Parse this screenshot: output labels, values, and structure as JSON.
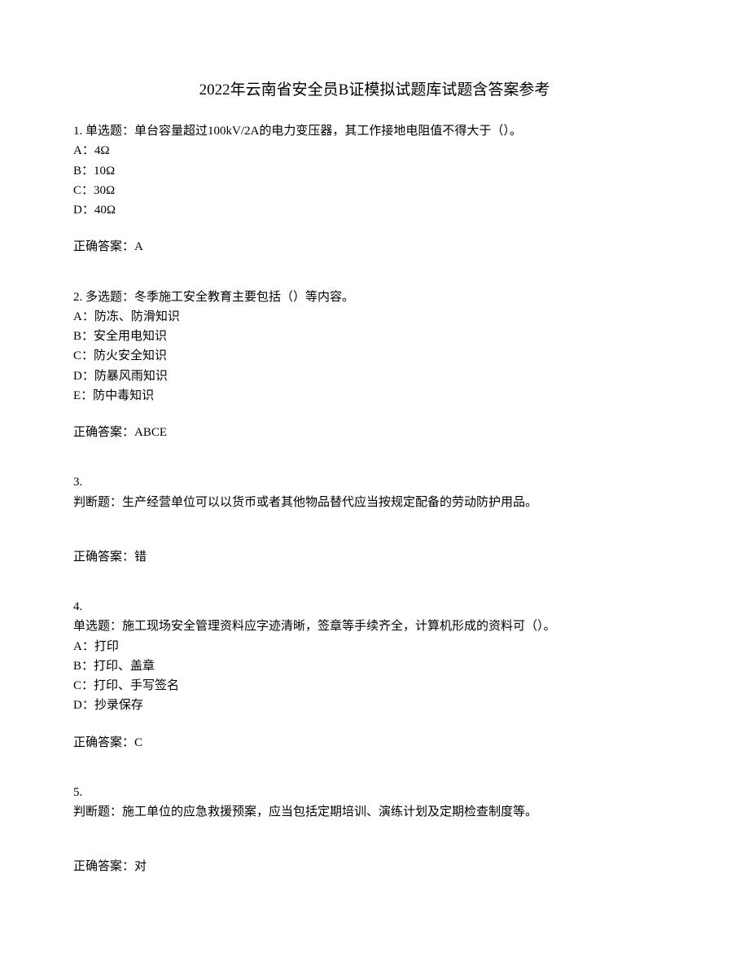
{
  "title": "2022年云南省安全员B证模拟试题库试题含答案参考",
  "questions": [
    {
      "number": "1.",
      "type_prefix": "单选题：",
      "stem": "单台容量超过100kV/2A的电力变压器，其工作接地电阻值不得大于（）。",
      "options": [
        {
          "label": "A：",
          "text": "4Ω"
        },
        {
          "label": "B：",
          "text": "10Ω"
        },
        {
          "label": "C：",
          "text": "30Ω"
        },
        {
          "label": "D：",
          "text": "40Ω"
        }
      ],
      "answer_prefix": "正确答案：",
      "answer": "A"
    },
    {
      "number": "2.",
      "type_prefix": "多选题：",
      "stem": "冬季施工安全教育主要包括（）等内容。",
      "options": [
        {
          "label": "A：",
          "text": "防冻、防滑知识"
        },
        {
          "label": "B：",
          "text": "安全用电知识"
        },
        {
          "label": "C：",
          "text": "防火安全知识"
        },
        {
          "label": "D：",
          "text": "防暴风雨知识"
        },
        {
          "label": "E：",
          "text": "防中毒知识"
        }
      ],
      "answer_prefix": "正确答案：",
      "answer": "ABCE"
    },
    {
      "number": "3.",
      "type_prefix": "判断题：",
      "stem": "生产经营单位可以以货币或者其他物品替代应当按规定配备的劳动防护用品。",
      "options": [],
      "answer_prefix": "正确答案：",
      "answer": "错",
      "number_on_own_line": true,
      "extra_gap_after_stem": true
    },
    {
      "number": "4.",
      "type_prefix": "单选题：",
      "stem": "施工现场安全管理资料应字迹清晰，签章等手续齐全，计算机形成的资料可（）。",
      "options": [
        {
          "label": "A：",
          "text": "打印"
        },
        {
          "label": "B：",
          "text": "打印、盖章"
        },
        {
          "label": "C：",
          "text": "打印、手写签名"
        },
        {
          "label": "D：",
          "text": "抄录保存"
        }
      ],
      "answer_prefix": "正确答案：",
      "answer": "C",
      "number_on_own_line": true
    },
    {
      "number": "5.",
      "type_prefix": "判断题：",
      "stem": "施工单位的应急救援预案，应当包括定期培训、演练计划及定期检查制度等。",
      "options": [],
      "answer_prefix": "正确答案：",
      "answer": "对",
      "number_on_own_line": true,
      "extra_gap_after_stem": true
    }
  ]
}
